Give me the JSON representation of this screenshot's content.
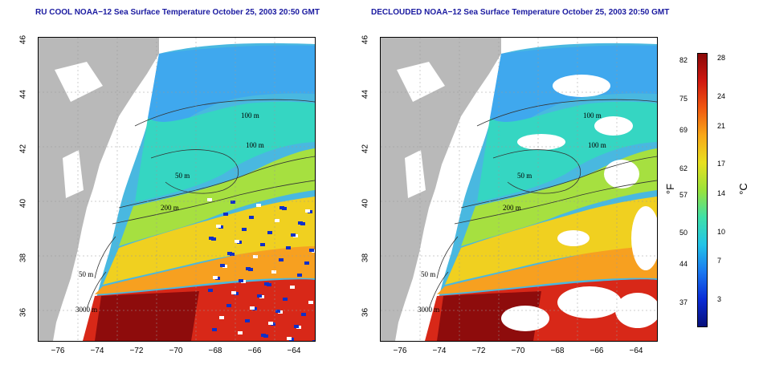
{
  "maps": [
    {
      "title": "RU COOL NOAA−12 Sea Surface Temperature October 25, 2003 20:50 GMT"
    },
    {
      "title": "DECLOUDED NOAA−12 Sea Surface Temperature October 25, 2003 20:50 GMT"
    }
  ],
  "axes": {
    "lat_ticks": [
      "46",
      "44",
      "42",
      "40",
      "38",
      "36"
    ],
    "lon_ticks": [
      "−76",
      "−74",
      "−72",
      "−70",
      "−68",
      "−66",
      "−64"
    ],
    "lat_range": [
      35,
      46
    ],
    "lon_range": [
      -77,
      -63
    ]
  },
  "contour_labels": [
    "100 m",
    "100 m",
    "50 m",
    "200 m",
    "50 m",
    "3000 m"
  ],
  "colorbar": {
    "fahrenheit_unit": "°F",
    "celsius_unit": "°C",
    "fahrenheit_ticks": [
      "82",
      "75",
      "69",
      "62",
      "57",
      "50",
      "44",
      "37"
    ],
    "celsius_ticks": [
      "28",
      "24",
      "21",
      "17",
      "14",
      "10",
      "7",
      "3"
    ],
    "colors": [
      "#08107a",
      "#0a2cd6",
      "#1a78f0",
      "#22c4e8",
      "#3ee0a8",
      "#9ae23a",
      "#e8e020",
      "#f8a818",
      "#f05810",
      "#d01810",
      "#8a0808"
    ]
  },
  "colors": {
    "land": "#b9b9b9",
    "title": "#1a1aa0"
  }
}
